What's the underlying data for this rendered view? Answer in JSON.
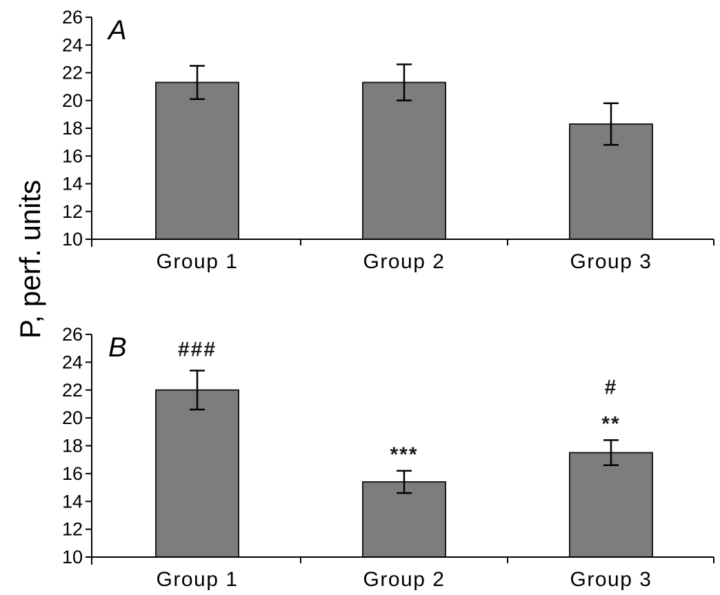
{
  "figure": {
    "y_axis_title": "P, perf. units",
    "background_color": "#ffffff",
    "bar_fill": "#7d7d7d",
    "bar_stroke": "#1a1a1a",
    "axis_color": "#000000",
    "text_color": "#000000"
  },
  "chart_data": [
    {
      "type": "bar",
      "panel_label": "A",
      "categories": [
        "Group 1",
        "Group 2",
        "Group 3"
      ],
      "values": [
        21.3,
        21.3,
        18.3
      ],
      "errors": [
        1.2,
        1.3,
        1.5
      ],
      "annotations": [
        [],
        [],
        []
      ],
      "title": "",
      "xlabel": "",
      "ylabel": "P, perf. units",
      "ylim": [
        10,
        26
      ],
      "yticks": [
        10,
        12,
        14,
        16,
        18,
        20,
        22,
        24,
        26
      ],
      "grid": false,
      "legend": "none"
    },
    {
      "type": "bar",
      "panel_label": "B",
      "categories": [
        "Group 1",
        "Group 2",
        "Group 3"
      ],
      "values": [
        22.0,
        15.4,
        17.5
      ],
      "errors": [
        1.4,
        0.8,
        0.9
      ],
      "annotations": [
        [
          "###"
        ],
        [
          "***"
        ],
        [
          "**",
          "#"
        ]
      ],
      "title": "",
      "xlabel": "",
      "ylabel": "P, perf. units",
      "ylim": [
        10,
        26
      ],
      "yticks": [
        10,
        12,
        14,
        16,
        18,
        20,
        22,
        24,
        26
      ],
      "grid": false,
      "legend": "none"
    }
  ]
}
